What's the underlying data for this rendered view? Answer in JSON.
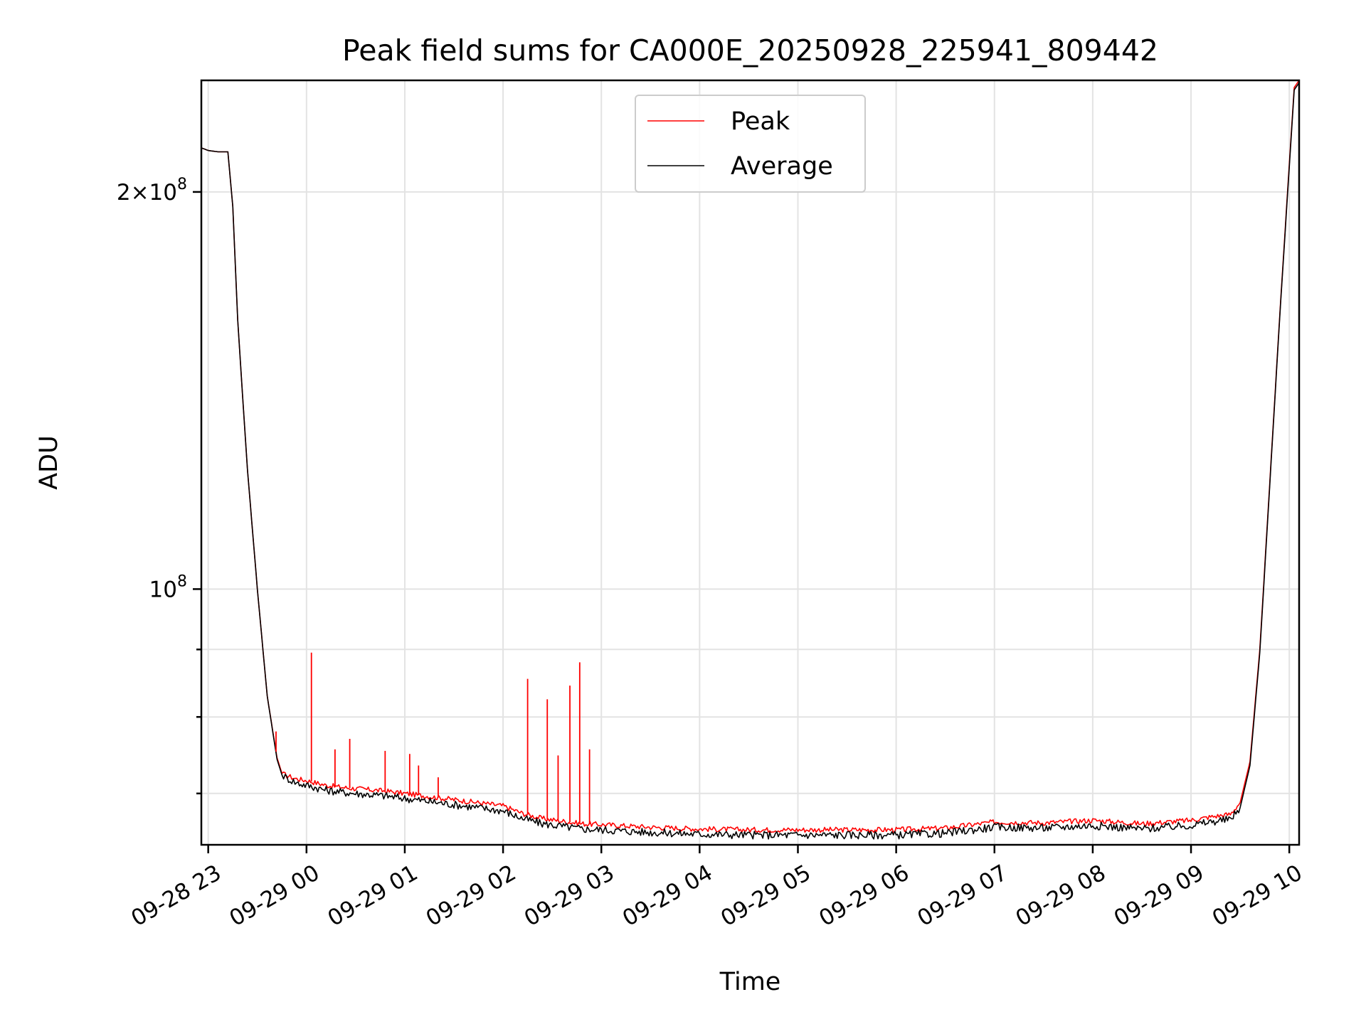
{
  "chart_data": {
    "type": "line",
    "title": "Peak field sums for CA000E_20250928_225941_809442",
    "xlabel": "Time",
    "ylabel": "ADU",
    "yscale": "log",
    "grid": true,
    "legend_position": "upper-center",
    "xlim_hours": [
      -0.07,
      11.1
    ],
    "ylim": [
      64000000,
      243000000
    ],
    "x_tick_values_hours": [
      0,
      1,
      2,
      3,
      4,
      5,
      6,
      7,
      8,
      9,
      10,
      11
    ],
    "x_tick_labels": [
      "09-28 23",
      "09-29 00",
      "09-29 01",
      "09-29 02",
      "09-29 03",
      "09-29 04",
      "09-29 05",
      "09-29 06",
      "09-29 07",
      "09-29 08",
      "09-29 09",
      "09-29 10"
    ],
    "y_major_ticks": [
      {
        "value": 200000000,
        "mantissa": "2×10",
        "exponent": "8"
      },
      {
        "value": 100000000,
        "mantissa": "10",
        "exponent": "8"
      }
    ],
    "y_minor_ticks": [
      90000000,
      80000000,
      70000000
    ],
    "x_unit": "hours since 09-28 23:00",
    "series": [
      {
        "name": "Peak",
        "color": "#ff0000",
        "x": [
          -0.07,
          0.0,
          0.1,
          0.2,
          0.25,
          0.3,
          0.35,
          0.4,
          0.5,
          0.6,
          0.7,
          0.75,
          0.8,
          0.85,
          0.9,
          1.0,
          1.2,
          1.4,
          1.6,
          1.8,
          2.0,
          2.2,
          2.4,
          2.6,
          2.8,
          3.0,
          3.2,
          3.4,
          3.6,
          3.8,
          4.0,
          4.5,
          5.0,
          5.5,
          6.0,
          6.5,
          7.0,
          7.5,
          8.0,
          8.5,
          9.0,
          9.5,
          10.0,
          10.2,
          10.4,
          10.5,
          10.6,
          10.7,
          10.8,
          10.9,
          11.0,
          11.05,
          11.1
        ],
        "values": [
          216000000,
          215000000,
          214500000,
          214500000,
          195000000,
          160000000,
          140000000,
          123000000,
          100000000,
          83000000,
          74500000,
          72500000,
          72200000,
          72000000,
          71800000,
          71600000,
          71000000,
          70700000,
          70500000,
          70300000,
          70000000,
          69700000,
          69400000,
          69100000,
          68800000,
          68500000,
          67600000,
          67000000,
          66700000,
          66400000,
          66300000,
          66000000,
          65800000,
          65700000,
          65700000,
          65700000,
          65700000,
          65900000,
          66600000,
          66500000,
          66800000,
          66400000,
          66800000,
          67200000,
          67500000,
          68900000,
          74000000,
          90000000,
          120000000,
          160000000,
          210000000,
          240000000,
          243000000
        ]
      },
      {
        "name": "Average",
        "color": "#000000",
        "x": [
          -0.07,
          0.0,
          0.1,
          0.2,
          0.25,
          0.3,
          0.35,
          0.4,
          0.5,
          0.6,
          0.7,
          0.75,
          0.8,
          0.85,
          0.9,
          1.0,
          1.2,
          1.4,
          1.6,
          1.8,
          2.0,
          2.2,
          2.4,
          2.6,
          2.8,
          3.0,
          3.2,
          3.4,
          3.6,
          3.8,
          4.0,
          4.5,
          5.0,
          5.5,
          6.0,
          6.5,
          7.0,
          7.5,
          8.0,
          8.5,
          9.0,
          9.5,
          10.0,
          10.2,
          10.4,
          10.5,
          10.6,
          10.7,
          10.8,
          10.9,
          11.0,
          11.05,
          11.1
        ],
        "values": [
          216000000,
          215000000,
          214500000,
          214500000,
          195000000,
          160000000,
          140000000,
          123000000,
          100000000,
          83000000,
          74300000,
          72300000,
          71900000,
          71600000,
          71300000,
          71000000,
          70400000,
          70100000,
          69900000,
          69700000,
          69400000,
          69100000,
          68800000,
          68500000,
          68200000,
          67900000,
          67000000,
          66400000,
          66100000,
          65800000,
          65700000,
          65400000,
          65200000,
          65100000,
          65100000,
          65100000,
          65100000,
          65300000,
          66000000,
          65900000,
          66200000,
          65800000,
          66200000,
          66600000,
          66900000,
          68300000,
          73500000,
          89500000,
          119500000,
          159500000,
          209000000,
          239000000,
          242000000
        ]
      }
    ],
    "spikes": {
      "x": [
        0.69,
        1.05,
        1.29,
        1.44,
        1.8,
        2.05,
        2.14,
        2.34,
        3.25,
        3.45,
        3.56,
        3.68,
        3.78,
        3.88
      ],
      "values": [
        78000000,
        89500000,
        75600000,
        77000000,
        75400000,
        75000000,
        73500000,
        72000000,
        85500000,
        82500000,
        74800000,
        84500000,
        88000000,
        75600000
      ]
    },
    "legend": [
      {
        "label": "Peak",
        "color": "#ff0000"
      },
      {
        "label": "Average",
        "color": "#000000"
      }
    ]
  }
}
